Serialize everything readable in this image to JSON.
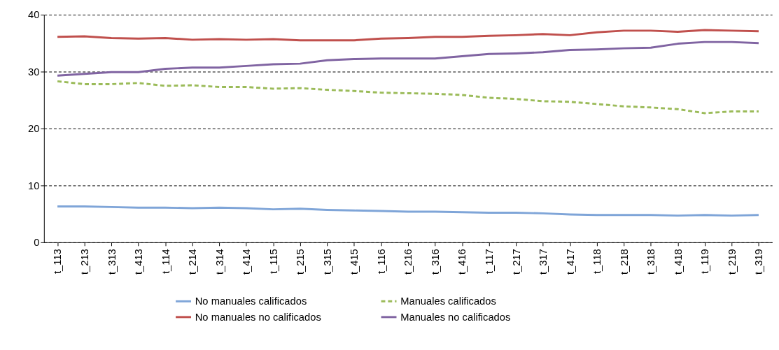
{
  "chart_data": {
    "type": "line",
    "categories": [
      "t_113",
      "t_213",
      "t_313",
      "t_413",
      "t_114",
      "t_214",
      "t_314",
      "t_414",
      "t_115",
      "t_215",
      "t_315",
      "t_415",
      "t_116",
      "t_216",
      "t_316",
      "t_416",
      "t_117",
      "t_217",
      "t_317",
      "t_417",
      "t_118",
      "t_218",
      "t_318",
      "t_418",
      "t_119",
      "t_219",
      "t_319"
    ],
    "series": [
      {
        "name": "No manuales calificados",
        "color": "#7fa5d8",
        "line_style": "solid",
        "values": [
          6.3,
          6.3,
          6.2,
          6.1,
          6.1,
          6.0,
          6.1,
          6.0,
          5.8,
          5.9,
          5.7,
          5.6,
          5.5,
          5.4,
          5.4,
          5.3,
          5.2,
          5.2,
          5.1,
          4.9,
          4.8,
          4.8,
          4.8,
          4.7,
          4.8,
          4.7,
          4.8
        ]
      },
      {
        "name": "No manuales no calificados",
        "color": "#c0504d",
        "line_style": "solid",
        "values": [
          36.1,
          36.2,
          35.9,
          35.8,
          35.9,
          35.6,
          35.7,
          35.6,
          35.7,
          35.5,
          35.5,
          35.5,
          35.8,
          35.9,
          36.1,
          36.1,
          36.3,
          36.4,
          36.6,
          36.4,
          36.9,
          37.2,
          37.2,
          37.0,
          37.3,
          37.2,
          37.1
        ]
      },
      {
        "name": "Manuales calificados",
        "color": "#9bbb59",
        "line_style": "dashed",
        "values": [
          28.3,
          27.8,
          27.8,
          28.0,
          27.5,
          27.6,
          27.3,
          27.3,
          27.0,
          27.1,
          26.8,
          26.6,
          26.3,
          26.2,
          26.1,
          25.9,
          25.4,
          25.2,
          24.8,
          24.7,
          24.3,
          23.9,
          23.7,
          23.4,
          22.7,
          23.0,
          23.0
        ]
      },
      {
        "name": "Manuales no calificados",
        "color": "#8064a2",
        "line_style": "solid",
        "values": [
          29.3,
          29.6,
          29.9,
          29.9,
          30.5,
          30.7,
          30.7,
          31.0,
          31.3,
          31.4,
          32.0,
          32.2,
          32.3,
          32.3,
          32.3,
          32.7,
          33.1,
          33.2,
          33.4,
          33.8,
          33.9,
          34.1,
          34.2,
          34.9,
          35.2,
          35.2,
          35.0
        ]
      }
    ],
    "ylim": [
      0,
      40
    ],
    "yticks": [
      0,
      10,
      20,
      30,
      40
    ],
    "grid": "y",
    "legend": "bottom",
    "marker": "none"
  }
}
